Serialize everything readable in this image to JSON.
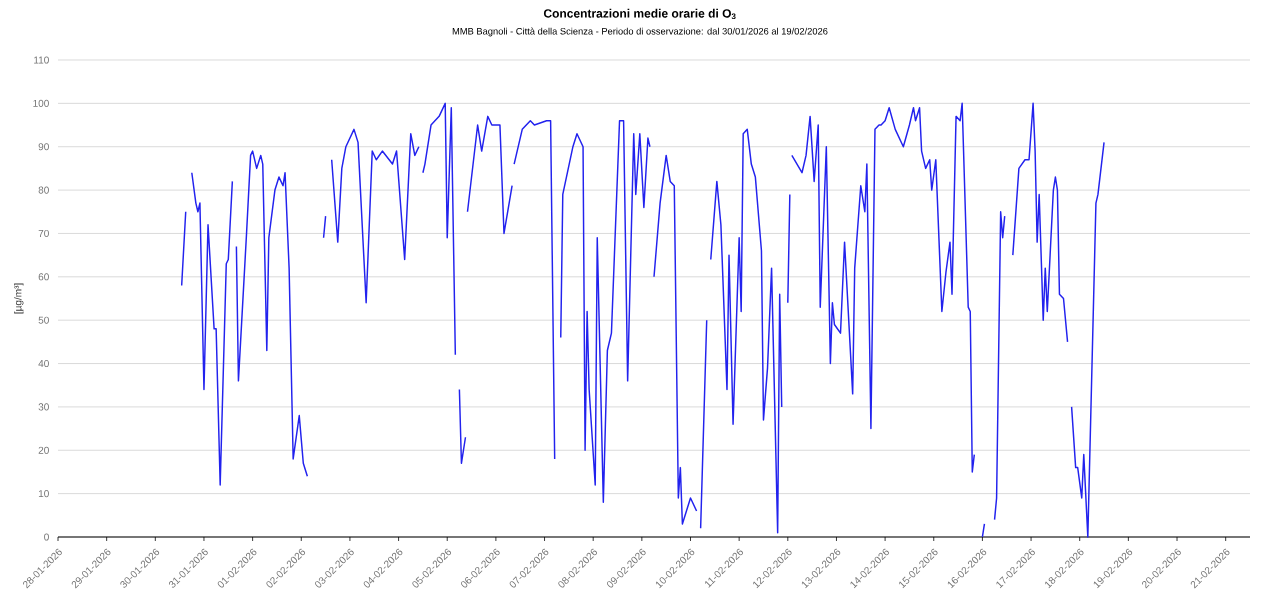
{
  "chart_data": {
    "type": "line",
    "title": "Concentrazioni medie orarie di O$_{3}$",
    "subtitle": "MMB Bagnoli - Città della Scienza - Periodo di osservazione: dal 30/01/2026 al 19/02/2026",
    "ylabel": "[µg/m³]",
    "x": [
      "2026-01-30T13:00",
      "2026-01-30T15:00",
      "2026-01-30T16:00",
      "2026-01-30T18:00",
      "2026-01-30T20:00",
      "2026-01-30T21:00",
      "2026-01-30T22:00",
      "2026-01-31T00:00",
      "2026-01-31T02:00",
      "2026-01-31T05:00",
      "2026-01-31T06:00",
      "2026-01-31T08:00",
      "2026-01-31T11:00",
      "2026-01-31T12:00",
      "2026-01-31T14:00",
      "2026-01-31T15:00",
      "2026-01-31T16:00",
      "2026-01-31T17:00",
      "2026-01-31T21:00",
      "2026-01-31T23:00",
      "2026-02-01T00:00",
      "2026-02-01T02:00",
      "2026-02-01T04:00",
      "2026-02-01T05:00",
      "2026-02-01T07:00",
      "2026-02-01T08:00",
      "2026-02-01T11:00",
      "2026-02-01T13:00",
      "2026-02-01T15:00",
      "2026-02-01T16:00",
      "2026-02-01T18:00",
      "2026-02-01T20:00",
      "2026-02-01T23:00",
      "2026-02-02T01:00",
      "2026-02-02T03:00",
      "2026-02-02T07:00",
      "2026-02-02T11:00",
      "2026-02-02T12:00",
      "2026-02-02T13:00",
      "2026-02-02T15:00",
      "2026-02-02T18:00",
      "2026-02-02T20:00",
      "2026-02-02T22:00",
      "2026-02-03T02:00",
      "2026-02-03T04:00",
      "2026-02-03T08:00",
      "2026-02-03T11:00",
      "2026-02-03T13:00",
      "2026-02-03T16:00",
      "2026-02-03T21:00",
      "2026-02-03T23:00",
      "2026-02-04T03:00",
      "2026-02-04T06:00",
      "2026-02-04T08:00",
      "2026-02-04T10:00",
      "2026-02-04T11:00",
      "2026-02-04T12:00",
      "2026-02-04T13:00",
      "2026-02-04T16:00",
      "2026-02-04T20:00",
      "2026-02-04T23:00",
      "2026-02-05T00:00",
      "2026-02-05T02:00",
      "2026-02-05T04:00",
      "2026-02-05T05:00",
      "2026-02-05T06:00",
      "2026-02-05T07:00",
      "2026-02-05T09:00",
      "2026-02-05T09:30",
      "2026-02-05T10:00",
      "2026-02-05T15:00",
      "2026-02-05T17:00",
      "2026-02-05T20:00",
      "2026-02-05T22:00",
      "2026-02-06T02:00",
      "2026-02-06T04:00",
      "2026-02-06T08:00",
      "2026-02-06T08:30",
      "2026-02-06T09:00",
      "2026-02-06T13:00",
      "2026-02-06T17:00",
      "2026-02-06T19:00",
      "2026-02-07T01:00",
      "2026-02-07T03:00",
      "2026-02-07T05:00",
      "2026-02-07T06:00",
      "2026-02-07T08:00",
      "2026-02-07T09:00",
      "2026-02-07T14:00",
      "2026-02-07T16:00",
      "2026-02-07T19:00",
      "2026-02-07T20:00",
      "2026-02-07T21:00",
      "2026-02-07T22:00",
      "2026-02-08T01:00",
      "2026-02-08T02:00",
      "2026-02-08T05:00",
      "2026-02-08T07:00",
      "2026-02-08T09:00",
      "2026-02-08T13:00",
      "2026-02-08T15:00",
      "2026-02-08T17:00",
      "2026-02-08T20:00",
      "2026-02-08T21:00",
      "2026-02-08T23:00",
      "2026-02-09T01:00",
      "2026-02-09T03:00",
      "2026-02-09T04:00",
      "2026-02-09T05:00",
      "2026-02-09T06:00",
      "2026-02-09T09:00",
      "2026-02-09T12:00",
      "2026-02-09T14:00",
      "2026-02-09T16:00",
      "2026-02-09T18:00",
      "2026-02-09T19:00",
      "2026-02-09T20:00",
      "2026-02-09T22:00",
      "2026-02-10T00:00",
      "2026-02-10T03:00",
      "2026-02-10T04:00",
      "2026-02-10T05:00",
      "2026-02-10T08:00",
      "2026-02-10T09:00",
      "2026-02-10T10:00",
      "2026-02-10T13:00",
      "2026-02-10T15:00",
      "2026-02-10T18:00",
      "2026-02-10T19:00",
      "2026-02-10T21:00",
      "2026-02-11T00:00",
      "2026-02-11T01:00",
      "2026-02-11T02:00",
      "2026-02-11T04:00",
      "2026-02-11T06:00",
      "2026-02-11T08:00",
      "2026-02-11T11:00",
      "2026-02-11T12:00",
      "2026-02-11T14:00",
      "2026-02-11T16:00",
      "2026-02-11T19:00",
      "2026-02-11T20:00",
      "2026-02-11T21:00",
      "2026-02-11T22:00",
      "2026-02-12T00:00",
      "2026-02-12T01:00",
      "2026-02-12T01:30",
      "2026-02-12T02:00",
      "2026-02-12T07:00",
      "2026-02-12T09:00",
      "2026-02-12T11:00",
      "2026-02-12T13:00",
      "2026-02-12T15:00",
      "2026-02-12T16:00",
      "2026-02-12T19:00",
      "2026-02-12T21:00",
      "2026-02-12T22:00",
      "2026-02-12T23:00",
      "2026-02-13T02:00",
      "2026-02-13T04:00",
      "2026-02-13T08:00",
      "2026-02-13T09:00",
      "2026-02-13T12:00",
      "2026-02-13T14:00",
      "2026-02-13T15:00",
      "2026-02-13T17:00",
      "2026-02-13T19:00",
      "2026-02-13T21:00",
      "2026-02-13T22:00",
      "2026-02-14T00:00",
      "2026-02-14T02:00",
      "2026-02-14T05:00",
      "2026-02-14T09:00",
      "2026-02-14T12:00",
      "2026-02-14T14:00",
      "2026-02-14T15:00",
      "2026-02-14T17:00",
      "2026-02-14T18:00",
      "2026-02-14T20:00",
      "2026-02-14T22:00",
      "2026-02-14T23:00",
      "2026-02-15T01:00",
      "2026-02-15T04:00",
      "2026-02-15T06:00",
      "2026-02-15T08:00",
      "2026-02-15T09:00",
      "2026-02-15T11:00",
      "2026-02-15T13:00",
      "2026-02-15T14:00",
      "2026-02-15T17:00",
      "2026-02-15T18:00",
      "2026-02-15T19:00",
      "2026-02-15T20:00",
      "2026-02-15T22:00",
      "2026-02-16T00:00",
      "2026-02-16T01:00",
      "2026-02-16T03:00",
      "2026-02-16T06:00",
      "2026-02-16T07:00",
      "2026-02-16T09:00",
      "2026-02-16T10:00",
      "2026-02-16T11:00",
      "2026-02-16T13:00",
      "2026-02-16T15:00",
      "2026-02-16T18:00",
      "2026-02-16T21:00",
      "2026-02-16T23:00",
      "2026-02-17T01:00",
      "2026-02-17T02:00",
      "2026-02-17T03:00",
      "2026-02-17T04:00",
      "2026-02-17T06:00",
      "2026-02-17T07:00",
      "2026-02-17T08:00",
      "2026-02-17T11:00",
      "2026-02-17T12:00",
      "2026-02-17T13:00",
      "2026-02-17T14:00",
      "2026-02-17T16:00",
      "2026-02-17T18:00",
      "2026-02-17T19:00",
      "2026-02-17T20:00",
      "2026-02-17T22:00",
      "2026-02-17T23:00",
      "2026-02-18T01:00",
      "2026-02-18T02:00",
      "2026-02-18T04:00",
      "2026-02-18T08:00",
      "2026-02-18T09:00",
      "2026-02-18T12:00"
    ],
    "series": [
      {
        "color": "#2222ee",
        "values": [
          58,
          75,
          null,
          84,
          77,
          75,
          77,
          34,
          72,
          48,
          48,
          12,
          63,
          64,
          82,
          null,
          67,
          36,
          70,
          88,
          89,
          85,
          88,
          86,
          43,
          69,
          80,
          83,
          81,
          84,
          62,
          18,
          28,
          17,
          14,
          null,
          69,
          74,
          null,
          87,
          68,
          85,
          90,
          94,
          91,
          54,
          89,
          87,
          89,
          86,
          89,
          64,
          93,
          88,
          90,
          null,
          84,
          86,
          95,
          97,
          100,
          69,
          99,
          42,
          null,
          34,
          17,
          23,
          null,
          75,
          95,
          89,
          97,
          95,
          95,
          70,
          81,
          null,
          86,
          94,
          96,
          95,
          96,
          96,
          18,
          null,
          46,
          79,
          90,
          93,
          90,
          20,
          52,
          34,
          12,
          69,
          8,
          43,
          47,
          96,
          96,
          36,
          93,
          79,
          93,
          76,
          92,
          90,
          null,
          60,
          77,
          88,
          82,
          81,
          9,
          16,
          3,
          6,
          9,
          6,
          null,
          2,
          50,
          null,
          64,
          82,
          72,
          34,
          65,
          26,
          69,
          52,
          93,
          94,
          86,
          83,
          66,
          27,
          39,
          62,
          1,
          56,
          30,
          null,
          54,
          79,
          null,
          88,
          84,
          88,
          97,
          82,
          95,
          53,
          90,
          40,
          54,
          49,
          47,
          68,
          33,
          62,
          81,
          75,
          86,
          25,
          94,
          95,
          95,
          96,
          99,
          94,
          90,
          95,
          99,
          96,
          99,
          89,
          85,
          87,
          80,
          87,
          52,
          61,
          68,
          56,
          97,
          96,
          100,
          53,
          52,
          15,
          19,
          null,
          0,
          3,
          null,
          4,
          9,
          75,
          69,
          74,
          null,
          65,
          85,
          87,
          87,
          100,
          89,
          68,
          79,
          50,
          62,
          52,
          80,
          83,
          80,
          56,
          55,
          45,
          null,
          30,
          16,
          16,
          9,
          19,
          0,
          77,
          79,
          91
        ]
      }
    ],
    "xlim": [
      "2026-01-28",
      "2026-02-21T12:00"
    ],
    "xticks": [
      {
        "value": "2026-01-28",
        "label": "28-01-2026"
      },
      {
        "value": "2026-01-29",
        "label": "29-01-2026"
      },
      {
        "value": "2026-01-30",
        "label": "30-01-2026"
      },
      {
        "value": "2026-01-31",
        "label": "31-01-2026"
      },
      {
        "value": "2026-02-01",
        "label": "01-02-2026"
      },
      {
        "value": "2026-02-02",
        "label": "02-02-2026"
      },
      {
        "value": "2026-02-03",
        "label": "03-02-2026"
      },
      {
        "value": "2026-02-04",
        "label": "04-02-2026"
      },
      {
        "value": "2026-02-05",
        "label": "05-02-2026"
      },
      {
        "value": "2026-02-06",
        "label": "06-02-2026"
      },
      {
        "value": "2026-02-07",
        "label": "07-02-2026"
      },
      {
        "value": "2026-02-08",
        "label": "08-02-2026"
      },
      {
        "value": "2026-02-09",
        "label": "09-02-2026"
      },
      {
        "value": "2026-02-10",
        "label": "10-02-2026"
      },
      {
        "value": "2026-02-11",
        "label": "11-02-2026"
      },
      {
        "value": "2026-02-12",
        "label": "12-02-2026"
      },
      {
        "value": "2026-02-13",
        "label": "13-02-2026"
      },
      {
        "value": "2026-02-14",
        "label": "14-02-2026"
      },
      {
        "value": "2026-02-15",
        "label": "15-02-2026"
      },
      {
        "value": "2026-02-16",
        "label": "16-02-2026"
      },
      {
        "value": "2026-02-17",
        "label": "17-02-2026"
      },
      {
        "value": "2026-02-18",
        "label": "18-02-2026"
      },
      {
        "value": "2026-02-19",
        "label": "19-02-2026"
      },
      {
        "value": "2026-02-20",
        "label": "20-02-2026"
      },
      {
        "value": "2026-02-21",
        "label": "21-02-2026"
      }
    ],
    "ylim": [
      0,
      110
    ],
    "yticks": [
      0,
      10,
      20,
      30,
      40,
      50,
      60,
      70,
      80,
      90,
      100,
      110
    ],
    "grid": "y"
  }
}
